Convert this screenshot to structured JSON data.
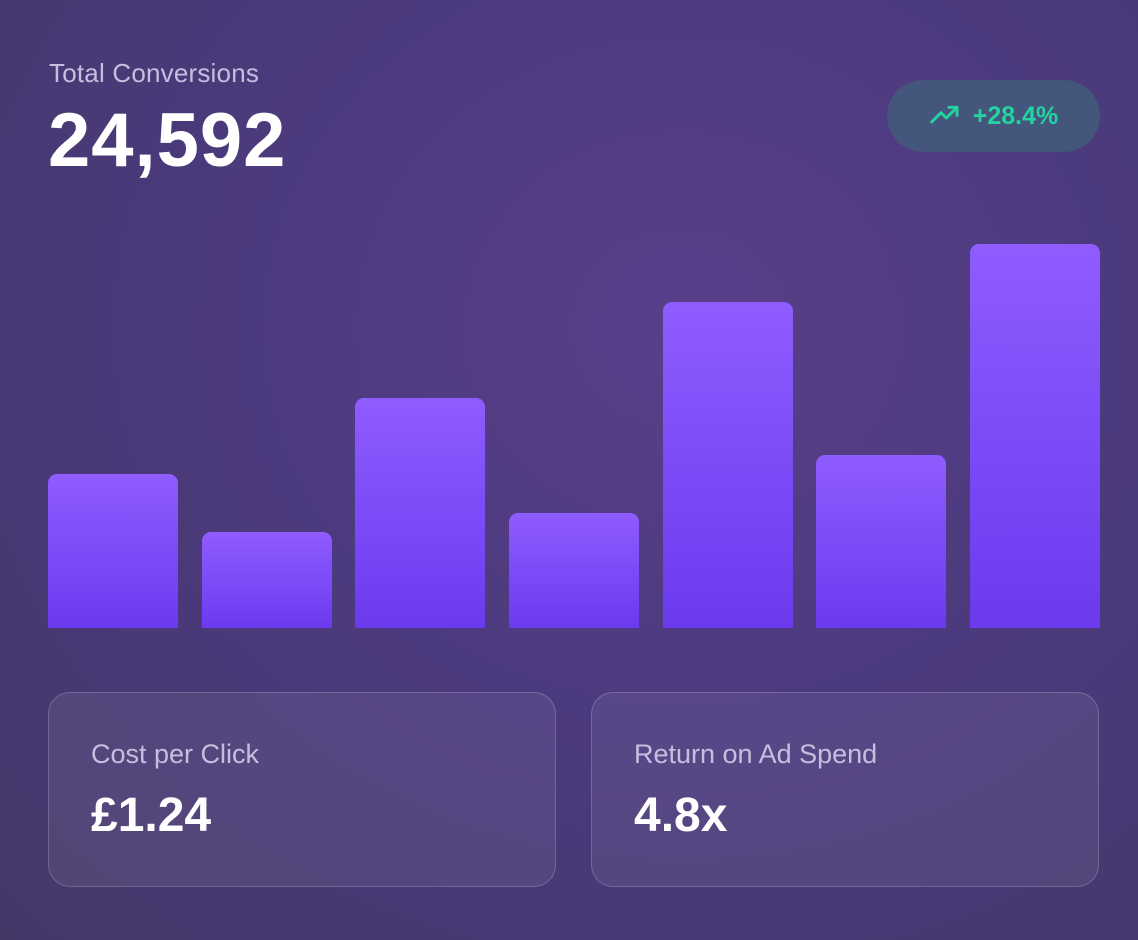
{
  "header": {
    "title": "Total Conversions",
    "value": "24,592"
  },
  "badge": {
    "icon": "trending-up-icon",
    "text": "+28.4%",
    "color": "#23d3a0"
  },
  "chart_data": {
    "type": "bar",
    "values": [
      154,
      96,
      230,
      115,
      326,
      173,
      384
    ],
    "ylim": [
      0,
      428
    ],
    "colors": [
      "#8e5cff",
      "#6c3aee"
    ]
  },
  "metrics": [
    {
      "label": "Cost per Click",
      "value": "£1.24"
    },
    {
      "label": "Return on Ad Spend",
      "value": "4.8x"
    }
  ]
}
